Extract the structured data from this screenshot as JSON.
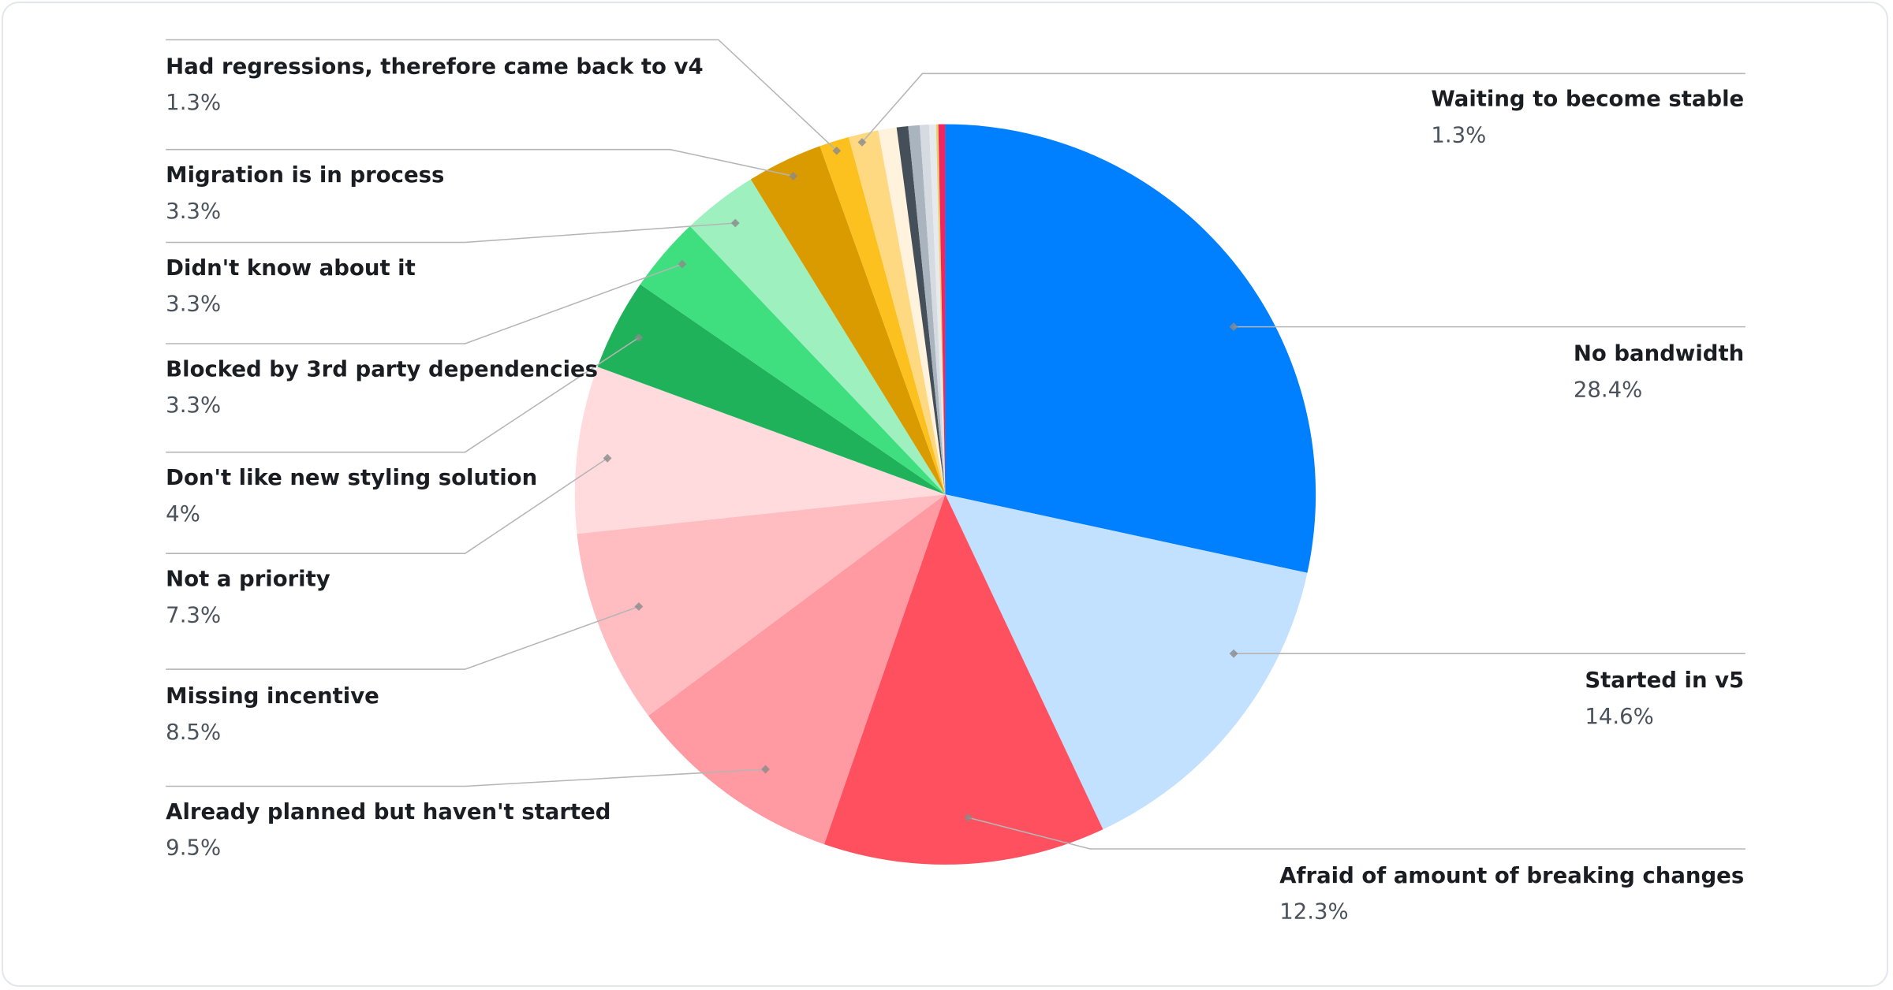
{
  "chart_data": {
    "type": "pie",
    "title": "",
    "start_angle": "top, clockwise",
    "slices": [
      {
        "label": "No bandwidth",
        "value": 28.4,
        "value_label": "28.4%",
        "color": "#0080ff"
      },
      {
        "label": "Started in v5",
        "value": 14.6,
        "value_label": "14.6%",
        "color": "#c2e0ff"
      },
      {
        "label": "Afraid of amount of breaking changes",
        "value": 12.3,
        "value_label": "12.3%",
        "color": "#ff505f"
      },
      {
        "label": "Already planned but haven't started",
        "value": 9.5,
        "value_label": "9.5%",
        "color": "#ff99a2"
      },
      {
        "label": "Missing incentive",
        "value": 8.5,
        "value_label": "8.5%",
        "color": "#ffbdc2"
      },
      {
        "label": "Not a priority",
        "value": 7.3,
        "value_label": "7.3%",
        "color": "#ffdbde"
      },
      {
        "label": "Don't like new styling solution",
        "value": 4,
        "value_label": "4%",
        "color": "#1fb25a"
      },
      {
        "label": "Blocked by 3rd party dependencies",
        "value": 3.3,
        "value_label": "3.3%",
        "color": "#3fdf7f"
      },
      {
        "label": "Didn't know about it",
        "value": 3.3,
        "value_label": "3.3%",
        "color": "#9ef0bf"
      },
      {
        "label": "Migration is in process",
        "value": 3.3,
        "value_label": "3.3%",
        "color": "#da9b00"
      },
      {
        "label": "Had regressions, therefore came back to v4",
        "value": 1.3,
        "value_label": "1.3%",
        "color": "#fdc11f"
      },
      {
        "label": "Waiting to become stable",
        "value": 1.3,
        "value_label": "1.3%",
        "color": "#ffd982"
      },
      {
        "label": "",
        "value": 0.8,
        "color": "#fff3dd"
      },
      {
        "label": "",
        "value": 0.5,
        "color": "#454f5a"
      },
      {
        "label": "",
        "value": 0.5,
        "color": "#aab4be"
      },
      {
        "label": "",
        "value": 0.4,
        "color": "#d5dbe0"
      },
      {
        "label": "",
        "value": 0.3,
        "color": "#e6eaee"
      },
      {
        "label": "",
        "value": 0.1,
        "color": "#e4d36a"
      },
      {
        "label": "",
        "value": 0.3,
        "color": "#f02662"
      }
    ]
  }
}
